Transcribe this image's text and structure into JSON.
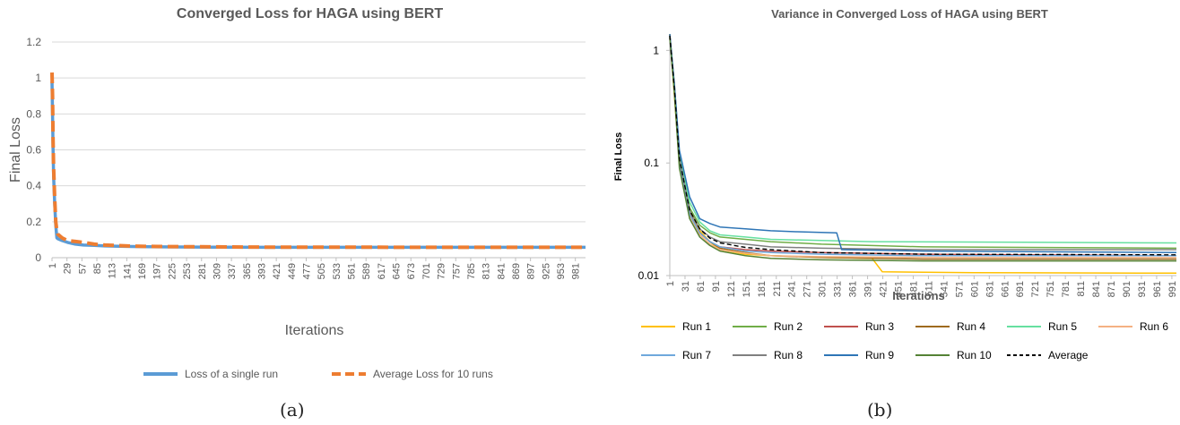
{
  "captions": {
    "a": "(a)",
    "b": "(b)"
  },
  "chart_data": [
    {
      "type": "line",
      "title": "Converged Loss for HAGA using BERT",
      "xlabel": "Iterations",
      "ylabel": "Final Loss",
      "ylim": [
        0,
        1.2
      ],
      "yticks": [
        "0",
        "0.2",
        "0.4",
        "0.6",
        "0.8",
        "1",
        "1.2"
      ],
      "xticks": [
        "1",
        "29",
        "57",
        "85",
        "113",
        "141",
        "169",
        "197",
        "225",
        "253",
        "281",
        "309",
        "337",
        "365",
        "393",
        "421",
        "449",
        "477",
        "505",
        "533",
        "561",
        "589",
        "617",
        "645",
        "673",
        "701",
        "729",
        "757",
        "785",
        "813",
        "841",
        "869",
        "897",
        "925",
        "953",
        "981"
      ],
      "xlim": [
        1,
        1000
      ],
      "grid": true,
      "legend_position": "bottom",
      "series": [
        {
          "name": "Loss of a single run",
          "color": "#5b9bd5",
          "style": "solid",
          "x": [
            1,
            2,
            3,
            4,
            6,
            8,
            10,
            12,
            20,
            30,
            45,
            60,
            80,
            100,
            150,
            200,
            300,
            400,
            500,
            700,
            1000
          ],
          "y": [
            0.98,
            0.8,
            0.6,
            0.45,
            0.3,
            0.18,
            0.11,
            0.105,
            0.095,
            0.085,
            0.075,
            0.07,
            0.068,
            0.065,
            0.062,
            0.06,
            0.059,
            0.058,
            0.058,
            0.058,
            0.058
          ]
        },
        {
          "name": "Average Loss for 10 runs",
          "color": "#ed7d31",
          "style": "dashed",
          "x": [
            1,
            2,
            3,
            4,
            6,
            8,
            10,
            12,
            20,
            30,
            45,
            60,
            80,
            100,
            150,
            200,
            300,
            400,
            500,
            700,
            1000
          ],
          "y": [
            1.03,
            0.9,
            0.65,
            0.5,
            0.33,
            0.2,
            0.15,
            0.13,
            0.11,
            0.095,
            0.09,
            0.085,
            0.075,
            0.07,
            0.064,
            0.062,
            0.06,
            0.059,
            0.059,
            0.058,
            0.058
          ]
        }
      ]
    },
    {
      "type": "line",
      "title": "Variance in Converged Loss of HAGA using BERT",
      "xlabel": "Iterations",
      "ylabel": "Final Loss",
      "yscale": "log",
      "ylim": [
        0.01,
        1.3
      ],
      "yticks": [
        "0.01",
        "0.1",
        "1"
      ],
      "xticks": [
        "1",
        "31",
        "61",
        "91",
        "121",
        "151",
        "181",
        "211",
        "241",
        "271",
        "301",
        "331",
        "361",
        "391",
        "421",
        "451",
        "481",
        "511",
        "541",
        "571",
        "601",
        "631",
        "661",
        "691",
        "721",
        "751",
        "781",
        "811",
        "841",
        "871",
        "901",
        "931",
        "961",
        "991"
      ],
      "xlim": [
        1,
        1000
      ],
      "grid": false,
      "legend_position": "bottom",
      "series": [
        {
          "name": "Run 1",
          "color": "#ffc000",
          "style": "solid",
          "x": [
            1,
            10,
            20,
            40,
            60,
            80,
            100,
            150,
            200,
            300,
            400,
            420,
            600,
            1000
          ],
          "y": [
            1.4,
            0.4,
            0.1,
            0.04,
            0.025,
            0.02,
            0.017,
            0.0155,
            0.015,
            0.0145,
            0.0142,
            0.0108,
            0.0106,
            0.0105
          ]
        },
        {
          "name": "Run 2",
          "color": "#70ad47",
          "style": "solid",
          "x": [
            1,
            10,
            20,
            40,
            60,
            80,
            100,
            150,
            200,
            300,
            500,
            1000
          ],
          "y": [
            1.35,
            0.5,
            0.12,
            0.04,
            0.028,
            0.024,
            0.022,
            0.021,
            0.02,
            0.019,
            0.018,
            0.0175
          ]
        },
        {
          "name": "Run 3",
          "color": "#c0504d",
          "style": "solid",
          "x": [
            1,
            10,
            20,
            40,
            60,
            80,
            100,
            150,
            200,
            300,
            500,
            1000
          ],
          "y": [
            1.3,
            0.45,
            0.1,
            0.035,
            0.024,
            0.02,
            0.018,
            0.017,
            0.0165,
            0.016,
            0.0155,
            0.015
          ]
        },
        {
          "name": "Run 4",
          "color": "#9e6a1e",
          "style": "solid",
          "x": [
            1,
            10,
            20,
            40,
            60,
            80,
            100,
            150,
            200,
            300,
            500,
            1000
          ],
          "y": [
            1.38,
            0.48,
            0.11,
            0.036,
            0.024,
            0.02,
            0.0175,
            0.016,
            0.015,
            0.0145,
            0.014,
            0.014
          ]
        },
        {
          "name": "Run 5",
          "color": "#66e0a0",
          "style": "solid",
          "x": [
            1,
            10,
            20,
            40,
            60,
            80,
            100,
            150,
            200,
            300,
            400,
            1000
          ],
          "y": [
            1.32,
            0.47,
            0.12,
            0.045,
            0.03,
            0.025,
            0.023,
            0.022,
            0.021,
            0.0205,
            0.02,
            0.0195
          ]
        },
        {
          "name": "Run 6",
          "color": "#f4b183",
          "style": "solid",
          "x": [
            1,
            10,
            20,
            40,
            60,
            80,
            100,
            150,
            200,
            300,
            500,
            1000
          ],
          "y": [
            1.36,
            0.46,
            0.1,
            0.034,
            0.023,
            0.019,
            0.017,
            0.0158,
            0.015,
            0.0147,
            0.0145,
            0.0145
          ]
        },
        {
          "name": "Run 7",
          "color": "#6fa8dc",
          "style": "solid",
          "x": [
            1,
            10,
            20,
            40,
            60,
            80,
            100,
            150,
            200,
            300,
            500,
            1000
          ],
          "y": [
            1.33,
            0.44,
            0.1,
            0.035,
            0.024,
            0.02,
            0.018,
            0.0165,
            0.016,
            0.0155,
            0.015,
            0.015
          ]
        },
        {
          "name": "Run 8",
          "color": "#808080",
          "style": "solid",
          "x": [
            1,
            10,
            20,
            40,
            60,
            80,
            100,
            150,
            200,
            300,
            500,
            1000
          ],
          "y": [
            1.37,
            0.45,
            0.11,
            0.038,
            0.026,
            0.022,
            0.02,
            0.019,
            0.018,
            0.0175,
            0.017,
            0.017
          ]
        },
        {
          "name": "Run 9",
          "color": "#2e75b6",
          "style": "solid",
          "x": [
            1,
            10,
            20,
            40,
            60,
            80,
            100,
            150,
            200,
            250,
            330,
            340,
            500,
            1000
          ],
          "y": [
            1.4,
            0.5,
            0.13,
            0.05,
            0.032,
            0.029,
            0.027,
            0.026,
            0.025,
            0.0245,
            0.024,
            0.017,
            0.0165,
            0.016
          ]
        },
        {
          "name": "Run 10",
          "color": "#548235",
          "style": "solid",
          "x": [
            1,
            10,
            20,
            40,
            60,
            80,
            100,
            150,
            200,
            300,
            500,
            1000
          ],
          "y": [
            1.3,
            0.42,
            0.09,
            0.032,
            0.022,
            0.0185,
            0.0165,
            0.015,
            0.0142,
            0.0138,
            0.0135,
            0.0135
          ]
        },
        {
          "name": "Average",
          "color": "#000000",
          "style": "dashed",
          "x": [
            1,
            10,
            20,
            40,
            60,
            80,
            100,
            150,
            200,
            300,
            500,
            1000
          ],
          "y": [
            1.35,
            0.46,
            0.11,
            0.038,
            0.026,
            0.0215,
            0.0195,
            0.0178,
            0.017,
            0.016,
            0.0155,
            0.0153
          ]
        }
      ]
    }
  ]
}
